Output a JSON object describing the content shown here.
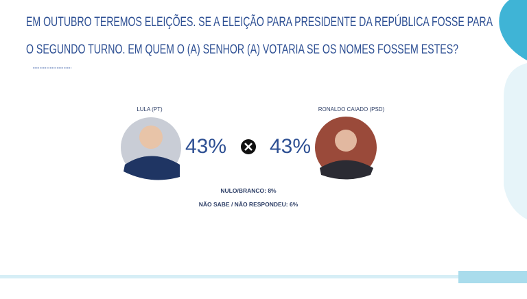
{
  "header": {
    "title_lines": [
      "EM OUTUBRO TEREMOS ELEIÇÕES. SE A ELEIÇÃO PARA PRESIDENTE DA REPÚBLICA FOSSE PARA",
      "O SEGUNDO TURNO. EM QUEM O (A) SENHOR (A) VOTARIA SE OS NOMES FOSSEM ESTES?"
    ]
  },
  "candidates": [
    {
      "name": "LULA (PT)",
      "percent": "43%"
    },
    {
      "name": "RONALDO CAIADO (PSD)",
      "percent": "43%"
    }
  ],
  "notes": [
    "NULO/BRANCO: 8%",
    "NÃO SABE / NÃO RESPONDEU: 6%"
  ]
}
